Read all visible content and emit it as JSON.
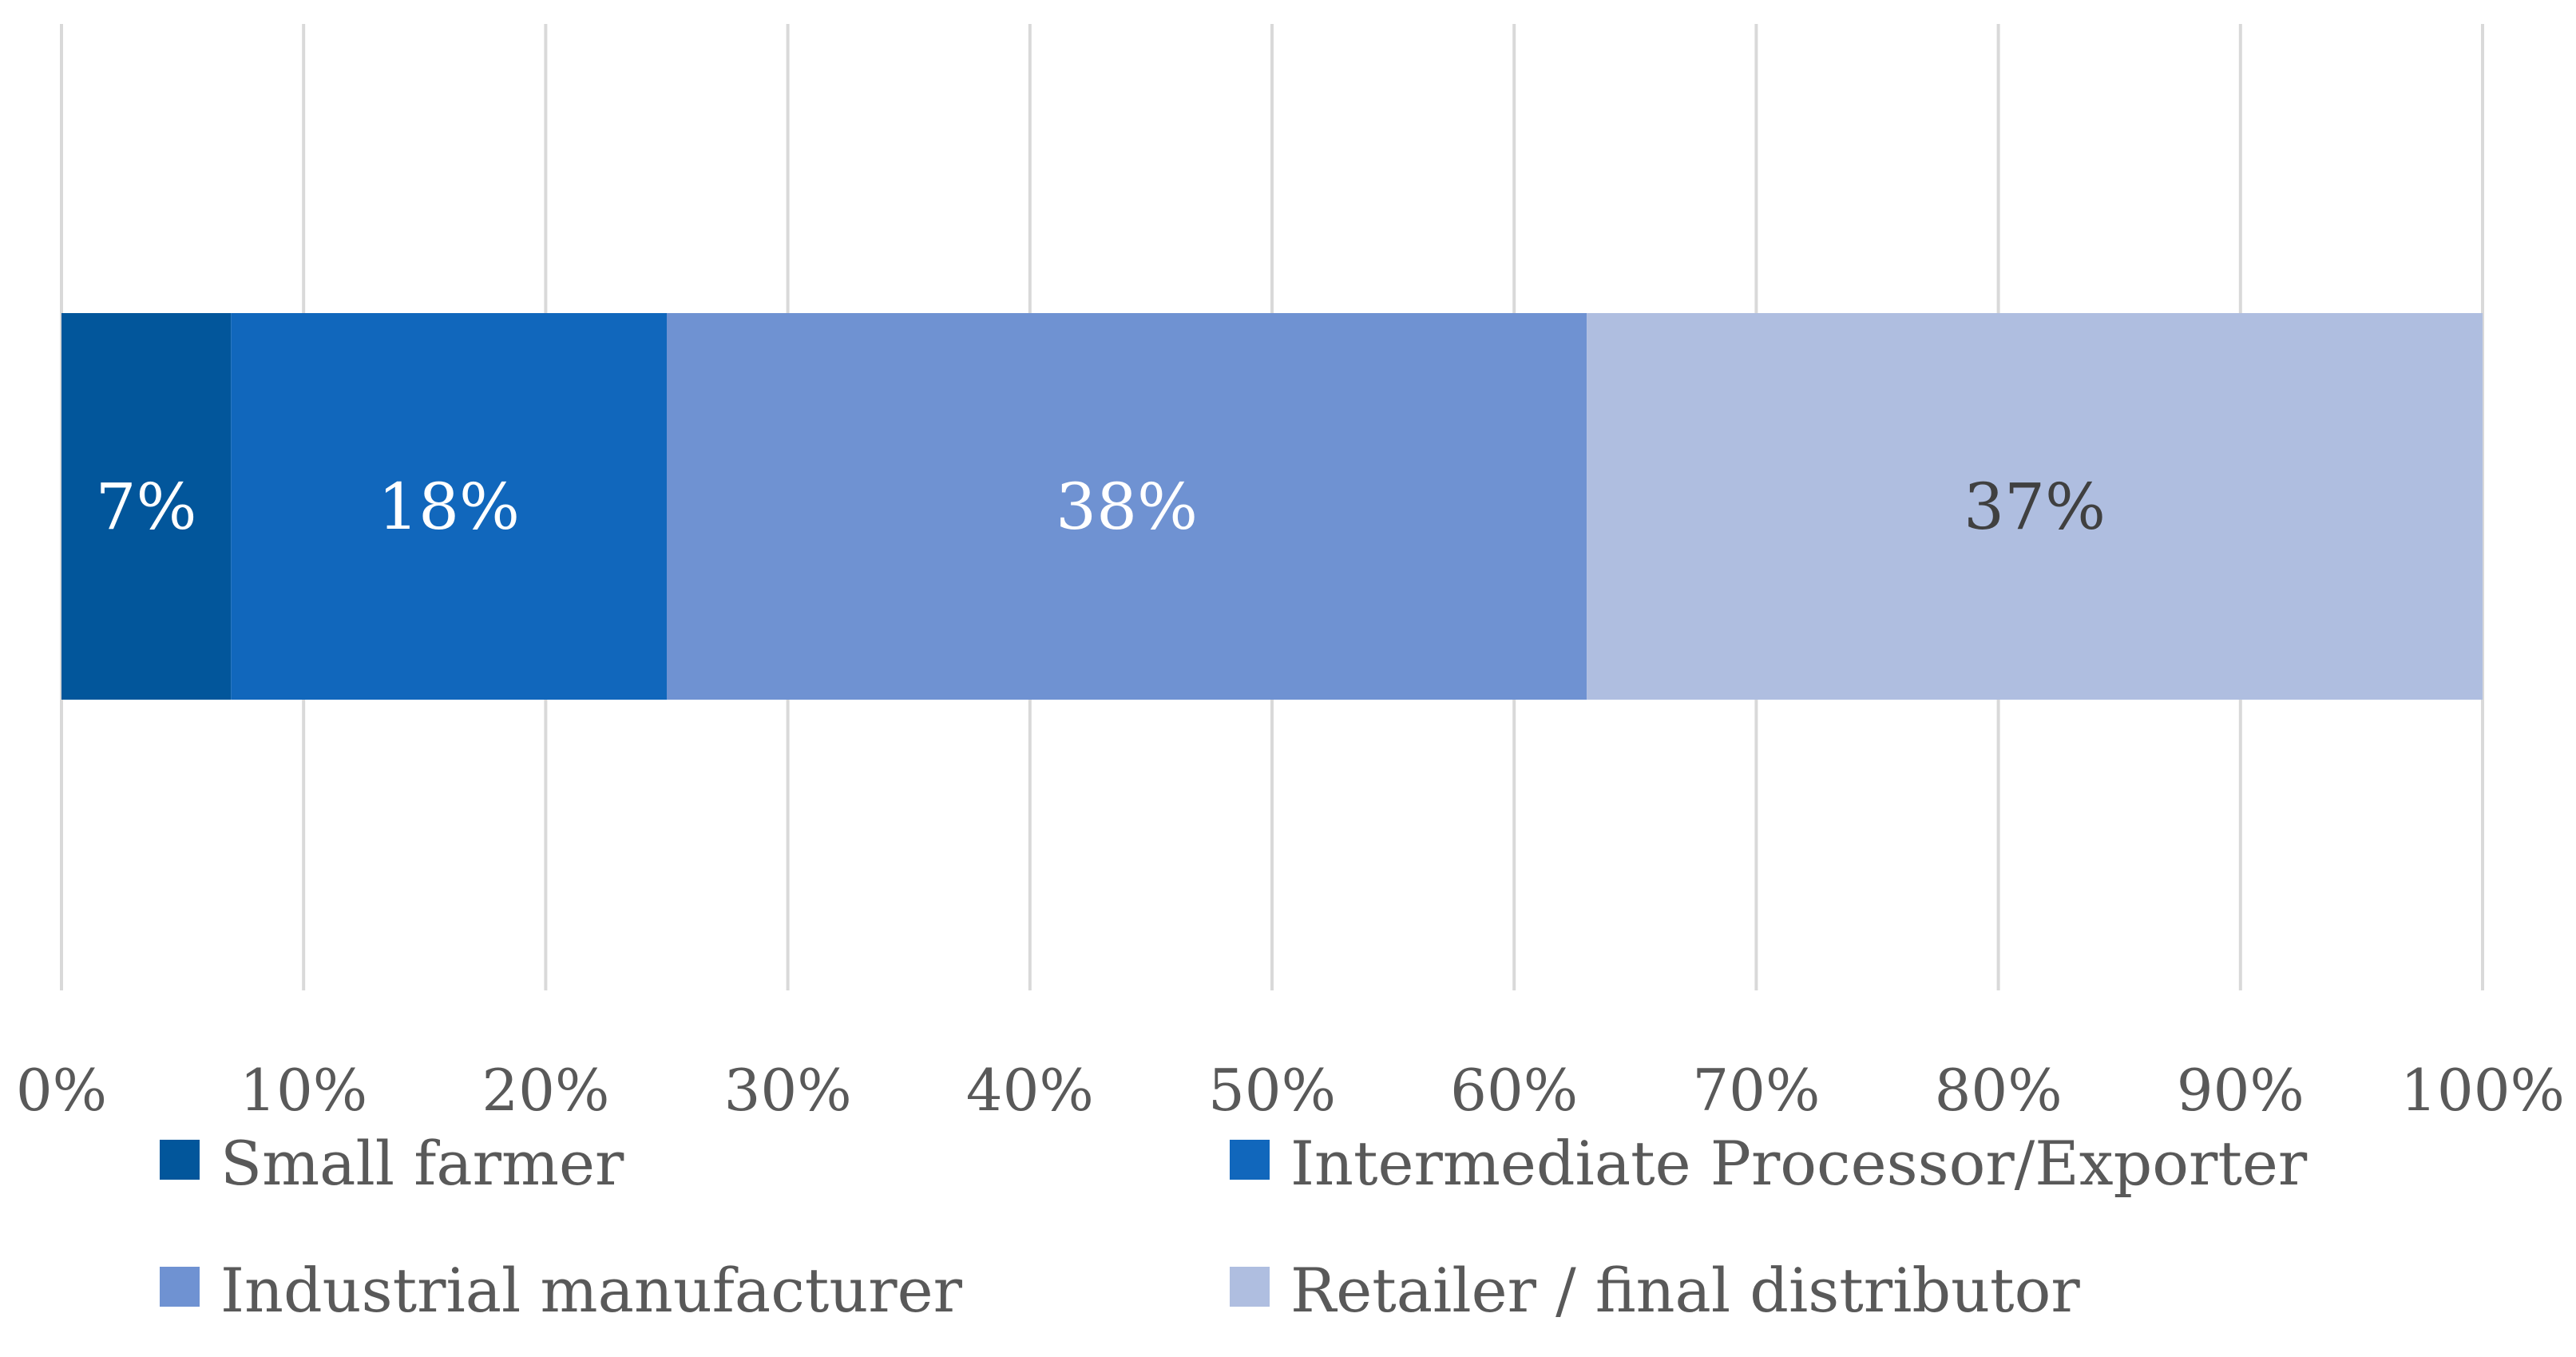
{
  "chart_data": {
    "type": "bar",
    "orientation": "horizontal",
    "stacked": true,
    "categories": [
      ""
    ],
    "series": [
      {
        "name": "Small farmer",
        "values": [
          7
        ],
        "color": "#02569B",
        "label": "7%",
        "label_color": "#ffffff"
      },
      {
        "name": "Intermediate Processor/Exporter",
        "values": [
          18
        ],
        "color": "#1167BC",
        "label": "18%",
        "label_color": "#ffffff"
      },
      {
        "name": "Industrial manufacturer",
        "values": [
          38
        ],
        "color": "#6F92D2",
        "label": "38%",
        "label_color": "#ffffff"
      },
      {
        "name": "Retailer / final distributor",
        "values": [
          37
        ],
        "color": "#AFBEE0",
        "label": "37%",
        "label_color": "#404040"
      }
    ],
    "xlim": [
      0,
      100
    ],
    "xticks": [
      "0%",
      "10%",
      "20%",
      "30%",
      "40%",
      "50%",
      "60%",
      "70%",
      "80%",
      "90%",
      "100%"
    ],
    "grid": "vertical",
    "gridline_color": "#D9D9D9",
    "legend_position": "bottom",
    "title": "",
    "xlabel": "",
    "ylabel": ""
  }
}
